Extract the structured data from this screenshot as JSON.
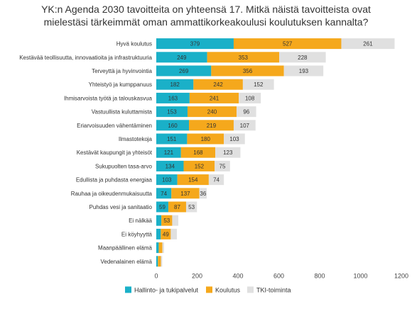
{
  "chart_data": {
    "type": "bar",
    "orientation": "horizontal",
    "stacked": true,
    "title_lines": [
      "YK:n Agenda 2030 tavoitteita on yhteensä 17. Mitkä näistä tavoitteista ovat",
      "mielestäsi tärkeimmät oman ammattikorkeakoulusi koulutuksen kannalta?"
    ],
    "categories": [
      "Hyvä koulutus",
      "Kestävää teollisuutta, innovaatioita ja infrastruktuuria",
      "Terveyttä ja hyvinvointia",
      "Yhteistyö ja kumppanuus",
      "Ihmisarvoista työtä ja talouskasvua",
      "Vastuullista kuluttamista",
      "Eriarvoisuuden vähentäminen",
      "Ilmastotekoja",
      "Kestävät kaupungit ja yhteisöt",
      "Sukupuolten tasa-arvo",
      "Edullista ja puhdasta energiaa",
      "Rauhaa ja oikeudenmukaisuutta",
      "Puhdas vesi ja sanitaatio",
      "Ei nälkää",
      "Ei köyhyyttä",
      "Maanpäällinen elämä",
      "Vedenalainen elämä"
    ],
    "series": [
      {
        "name": "Hallinto- ja tukipalvelut",
        "color": "#1ab0c8",
        "values": [
          379,
          249,
          269,
          182,
          163,
          153,
          160,
          151,
          121,
          134,
          103,
          74,
          59,
          25,
          22,
          12,
          8
        ],
        "labels": [
          "379",
          "249",
          "269",
          "182",
          "163",
          "153",
          "160",
          "151",
          "121",
          "134",
          "103",
          "74",
          "59",
          "",
          "",
          "",
          ""
        ]
      },
      {
        "name": "Koulutus",
        "color": "#f5a81c",
        "values": [
          527,
          353,
          356,
          242,
          241,
          240,
          219,
          180,
          168,
          152,
          154,
          137,
          87,
          53,
          49,
          18,
          15
        ],
        "labels": [
          "527",
          "353",
          "356",
          "242",
          "241",
          "240",
          "219",
          "180",
          "168",
          "152",
          "154",
          "137",
          "87",
          "53",
          "49",
          "",
          ""
        ]
      },
      {
        "name": "TKI-toiminta",
        "color": "#e0e0e0",
        "values": [
          261,
          228,
          193,
          152,
          108,
          96,
          107,
          103,
          123,
          75,
          74,
          36,
          53,
          30,
          30,
          8,
          6
        ],
        "labels": [
          "261",
          "228",
          "193",
          "152",
          "108",
          "96",
          "107",
          "103",
          "123",
          "75",
          "74",
          "36",
          "53",
          "",
          "",
          "",
          ""
        ]
      }
    ],
    "xlim": [
      0,
      1200
    ],
    "xticks": [
      "0",
      "200",
      "400",
      "600",
      "800",
      "1000",
      "1200"
    ],
    "xtick_values": [
      0,
      200,
      400,
      600,
      800,
      1000,
      1200
    ],
    "legend_position": "bottom",
    "grid": false
  }
}
